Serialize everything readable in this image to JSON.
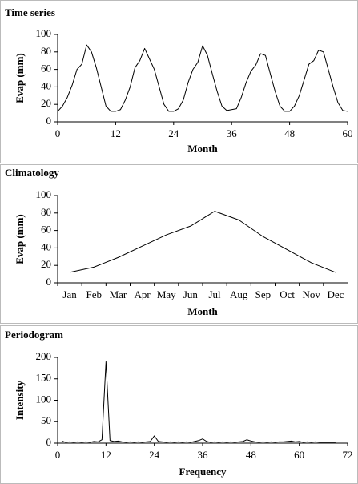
{
  "chart_data": [
    {
      "type": "line",
      "title": "Time series",
      "xlabel": "Month",
      "ylabel": "Evap (mm)",
      "color": "#000000",
      "x": [
        0,
        1,
        2,
        3,
        4,
        5,
        6,
        7,
        8,
        9,
        10,
        11,
        12,
        13,
        14,
        15,
        16,
        17,
        18,
        19,
        20,
        21,
        22,
        23,
        24,
        25,
        26,
        27,
        28,
        29,
        30,
        31,
        32,
        33,
        34,
        35,
        36,
        37,
        38,
        39,
        40,
        41,
        42,
        43,
        44,
        45,
        46,
        47,
        48,
        49,
        50,
        51,
        52,
        53,
        54,
        55,
        56,
        57,
        58,
        59,
        60
      ],
      "values": [
        12,
        18,
        28,
        42,
        60,
        66,
        88,
        80,
        62,
        40,
        18,
        12,
        12,
        14,
        25,
        40,
        62,
        70,
        84,
        72,
        60,
        40,
        20,
        12,
        12,
        15,
        25,
        45,
        60,
        68,
        87,
        76,
        55,
        35,
        18,
        13,
        14,
        15,
        28,
        45,
        58,
        65,
        78,
        76,
        55,
        35,
        18,
        12,
        12,
        18,
        30,
        48,
        66,
        70,
        82,
        80,
        60,
        40,
        22,
        13,
        12
      ],
      "xlim": [
        0,
        60
      ],
      "xticks": [
        0,
        12,
        24,
        36,
        48,
        60
      ],
      "ylim": [
        0,
        100
      ],
      "yticks": [
        0,
        20,
        40,
        60,
        80,
        100
      ]
    },
    {
      "type": "line",
      "title": "Climatology",
      "xlabel": "Month",
      "ylabel": "Evap (mm)",
      "color": "#000000",
      "categories": [
        "Jan",
        "Feb",
        "Mar",
        "Apr",
        "May",
        "Jun",
        "Jul",
        "Aug",
        "Sep",
        "Oct",
        "Nov",
        "Dec"
      ],
      "values": [
        12,
        18,
        29,
        42,
        55,
        65,
        82,
        72,
        53,
        38,
        23,
        12
      ],
      "ylim": [
        0,
        100
      ],
      "yticks": [
        0,
        20,
        40,
        60,
        80,
        100
      ]
    },
    {
      "type": "line",
      "title": "Periodogram",
      "xlabel": "Frequency",
      "ylabel": "Intensity",
      "color": "#000000",
      "x": [
        1,
        2,
        3,
        4,
        5,
        6,
        7,
        8,
        9,
        10,
        11,
        12,
        13,
        14,
        15,
        16,
        17,
        18,
        19,
        20,
        21,
        22,
        23,
        24,
        25,
        26,
        27,
        28,
        29,
        30,
        31,
        32,
        33,
        34,
        35,
        36,
        37,
        38,
        39,
        40,
        41,
        42,
        43,
        44,
        45,
        46,
        47,
        48,
        49,
        50,
        51,
        52,
        53,
        54,
        55,
        56,
        57,
        58,
        59,
        60,
        61,
        62,
        63,
        64,
        65,
        66,
        67,
        68,
        69
      ],
      "values": [
        5,
        2,
        3,
        2,
        3,
        2,
        3,
        2,
        4,
        3,
        8,
        190,
        6,
        4,
        5,
        3,
        2,
        3,
        2,
        3,
        2,
        3,
        4,
        17,
        4,
        3,
        2,
        3,
        2,
        3,
        2,
        3,
        2,
        4,
        6,
        10,
        4,
        2,
        3,
        2,
        3,
        2,
        3,
        2,
        3,
        4,
        8,
        5,
        3,
        2,
        3,
        2,
        3,
        2,
        3,
        3,
        4,
        5,
        3,
        4,
        2,
        3,
        2,
        3,
        2,
        2,
        2,
        2,
        2
      ],
      "xlim": [
        0,
        72
      ],
      "xticks": [
        0,
        12,
        24,
        36,
        48,
        60,
        72
      ],
      "ylim": [
        0,
        200
      ],
      "yticks": [
        0,
        50,
        100,
        150,
        200
      ]
    }
  ]
}
